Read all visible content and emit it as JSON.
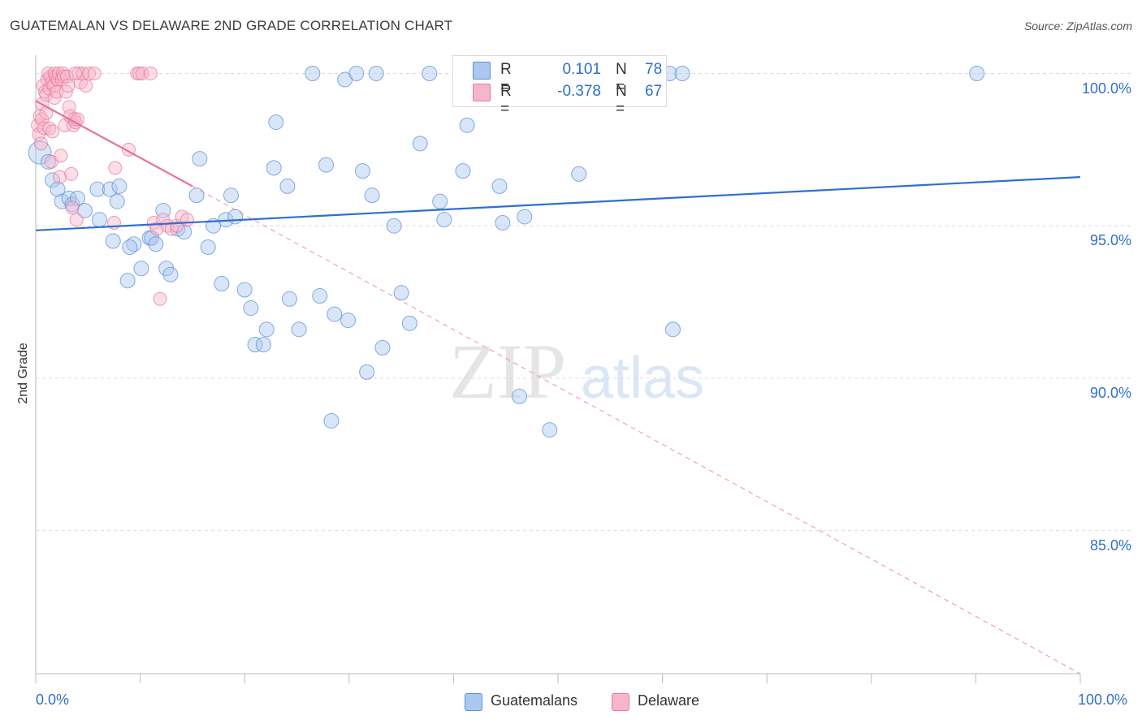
{
  "title": "GUATEMALAN VS DELAWARE 2ND GRADE CORRELATION CHART",
  "source": "Source: ZipAtlas.com",
  "watermark": {
    "zip": "ZIP",
    "atlas": "atlas"
  },
  "legend": {
    "rows": [
      {
        "r_label": "R =",
        "r_value": "0.101",
        "n_label": "N =",
        "n_value": "78"
      },
      {
        "r_label": "R =",
        "r_value": "-0.378",
        "n_label": "N =",
        "n_value": "67"
      }
    ]
  },
  "bottom_legend": [
    {
      "label": "Guatemalans"
    },
    {
      "label": "Delaware"
    }
  ],
  "colors": {
    "blue_fill": "#aac8f0",
    "blue_stroke": "#5e8fd6",
    "blue_line": "#2f6fcf",
    "pink_fill": "#f6b6c9",
    "pink_stroke": "#e97a9c",
    "pink_line": "#e8719a",
    "grid": "#dcdcdc",
    "tick_text": "#2f6fcf"
  },
  "chart_data": {
    "type": "scatter",
    "title": "GUATEMALAN VS DELAWARE 2ND GRADE CORRELATION CHART",
    "xlabel": "",
    "ylabel": "2nd Grade",
    "xlim": [
      0,
      100
    ],
    "ylim": [
      80.3,
      100.6
    ],
    "x_tick_labels": [
      "0.0%",
      "100.0%"
    ],
    "y_ticks": [
      100,
      95,
      90,
      85
    ],
    "y_tick_labels": [
      "100.0%",
      "95.0%",
      "90.0%",
      "85.0%"
    ],
    "grid": true,
    "series": [
      {
        "name": "Guatemalans",
        "color": "#aac8f0",
        "trend": {
          "x0": 0,
          "y0": 94.85,
          "x1": 100,
          "y1": 96.6,
          "style": "solid"
        },
        "points": [
          [
            0.4,
            97.4,
            "big"
          ],
          [
            1.2,
            97.1
          ],
          [
            1.6,
            96.5
          ],
          [
            2.1,
            96.2
          ],
          [
            2.5,
            95.8
          ],
          [
            3.2,
            95.9
          ],
          [
            3.5,
            95.7
          ],
          [
            4.0,
            95.9
          ],
          [
            4.7,
            95.5
          ],
          [
            5.9,
            96.2
          ],
          [
            6.1,
            95.2
          ],
          [
            7.1,
            96.2
          ],
          [
            7.8,
            95.8
          ],
          [
            7.4,
            94.5
          ],
          [
            8.0,
            96.3
          ],
          [
            8.8,
            93.2
          ],
          [
            9.4,
            94.4
          ],
          [
            9.0,
            94.3
          ],
          [
            10.1,
            93.6
          ],
          [
            10.9,
            94.6
          ],
          [
            11.1,
            94.6
          ],
          [
            11.5,
            94.4
          ],
          [
            12.2,
            95.5
          ],
          [
            12.5,
            93.6
          ],
          [
            12.9,
            93.4
          ],
          [
            13.6,
            94.9
          ],
          [
            14.2,
            94.8
          ],
          [
            15.4,
            96.0
          ],
          [
            15.7,
            97.2
          ],
          [
            16.5,
            94.3
          ],
          [
            17.0,
            95.0
          ],
          [
            17.8,
            93.1
          ],
          [
            18.2,
            95.2
          ],
          [
            18.7,
            96.0
          ],
          [
            19.1,
            95.3
          ],
          [
            20.0,
            92.9
          ],
          [
            20.6,
            92.3
          ],
          [
            21.0,
            91.1
          ],
          [
            21.8,
            91.1
          ],
          [
            22.1,
            91.6
          ],
          [
            23.0,
            98.4
          ],
          [
            22.8,
            96.9
          ],
          [
            24.1,
            96.3
          ],
          [
            24.3,
            92.6
          ],
          [
            25.2,
            91.6
          ],
          [
            26.5,
            100.0
          ],
          [
            27.2,
            92.7
          ],
          [
            27.8,
            97.0
          ],
          [
            28.3,
            88.6
          ],
          [
            28.6,
            92.1
          ],
          [
            29.6,
            99.8
          ],
          [
            29.9,
            91.9
          ],
          [
            30.7,
            100.0
          ],
          [
            31.3,
            96.8
          ],
          [
            31.7,
            90.2
          ],
          [
            32.2,
            96.0
          ],
          [
            32.6,
            100.0
          ],
          [
            33.2,
            91.0
          ],
          [
            34.3,
            95.0
          ],
          [
            35.0,
            92.8
          ],
          [
            35.8,
            91.8
          ],
          [
            36.8,
            97.7
          ],
          [
            37.7,
            100.0
          ],
          [
            38.7,
            95.8
          ],
          [
            39.1,
            95.2
          ],
          [
            40.9,
            96.8
          ],
          [
            41.3,
            98.3
          ],
          [
            43.2,
            100.0
          ],
          [
            44.4,
            96.3
          ],
          [
            44.7,
            95.1
          ],
          [
            46.3,
            89.4
          ],
          [
            46.8,
            95.3
          ],
          [
            49.2,
            88.3
          ],
          [
            52.0,
            96.7
          ],
          [
            60.7,
            100.0
          ],
          [
            61.9,
            100.0
          ],
          [
            61.0,
            91.6
          ],
          [
            90.1,
            100.0
          ]
        ]
      },
      {
        "name": "Delaware",
        "color": "#f6b6c9",
        "trend": {
          "x0": 0,
          "y0": 99.1,
          "x1": 15,
          "y1": 96.3,
          "style": "solid",
          "extend_to": [
            100,
            80.3
          ],
          "extend_style": "dashed"
        },
        "points": [
          [
            0.2,
            98.3
          ],
          [
            0.3,
            98.0
          ],
          [
            0.4,
            98.6
          ],
          [
            0.5,
            97.7
          ],
          [
            0.6,
            99.0
          ],
          [
            0.6,
            98.5
          ],
          [
            0.7,
            99.6
          ],
          [
            0.8,
            98.2
          ],
          [
            0.9,
            99.4
          ],
          [
            1.0,
            99.3
          ],
          [
            1.0,
            98.7
          ],
          [
            1.1,
            99.8
          ],
          [
            1.2,
            100.0
          ],
          [
            1.3,
            99.5
          ],
          [
            1.3,
            98.2
          ],
          [
            1.4,
            99.9
          ],
          [
            1.5,
            99.7
          ],
          [
            1.5,
            97.1
          ],
          [
            1.7,
            99.6
          ],
          [
            1.8,
            99.2
          ],
          [
            1.8,
            100.0
          ],
          [
            1.9,
            99.9
          ],
          [
            2.0,
            99.4
          ],
          [
            2.1,
            99.8
          ],
          [
            2.2,
            100.0
          ],
          [
            2.3,
            96.6
          ],
          [
            2.4,
            97.3
          ],
          [
            2.5,
            99.8
          ],
          [
            2.6,
            100.0
          ],
          [
            2.7,
            99.9
          ],
          [
            2.8,
            98.3
          ],
          [
            2.9,
            99.4
          ],
          [
            3.0,
            99.9
          ],
          [
            3.1,
            99.6
          ],
          [
            3.2,
            98.9
          ],
          [
            3.3,
            98.6
          ],
          [
            3.4,
            96.7
          ],
          [
            3.5,
            95.6
          ],
          [
            3.6,
            98.3
          ],
          [
            3.7,
            98.5
          ],
          [
            3.8,
            98.4
          ],
          [
            3.9,
            95.2
          ],
          [
            4.0,
            98.5
          ],
          [
            4.1,
            100.0
          ],
          [
            4.3,
            99.7
          ],
          [
            4.5,
            100.0
          ],
          [
            4.8,
            99.6
          ],
          [
            5.1,
            100.0
          ],
          [
            5.6,
            100.0
          ],
          [
            7.5,
            95.1
          ],
          [
            7.6,
            96.9
          ],
          [
            8.9,
            97.5
          ],
          [
            9.7,
            100.0
          ],
          [
            9.9,
            100.0
          ],
          [
            10.2,
            100.0
          ],
          [
            11.0,
            100.0
          ],
          [
            11.3,
            95.1
          ],
          [
            11.6,
            94.9
          ],
          [
            11.9,
            92.6
          ],
          [
            12.2,
            95.2
          ],
          [
            12.6,
            95.0
          ],
          [
            13.0,
            94.9
          ],
          [
            13.5,
            95.0
          ],
          [
            14.0,
            95.3
          ],
          [
            14.5,
            95.2
          ],
          [
            3.8,
            100.0
          ],
          [
            1.6,
            98.1
          ]
        ]
      }
    ]
  }
}
